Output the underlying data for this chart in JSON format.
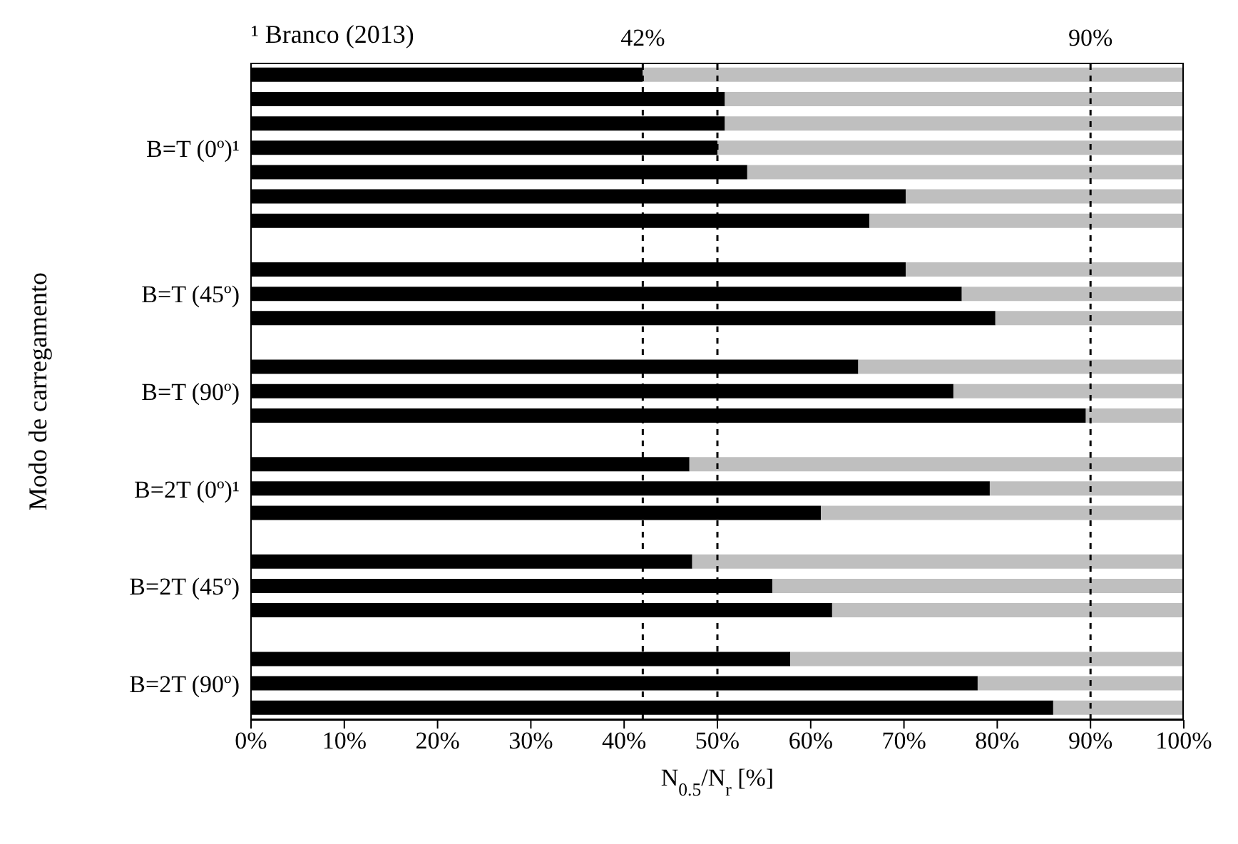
{
  "chart_data": {
    "type": "bar",
    "orientation": "horizontal",
    "stacked": true,
    "xlabel": "N$_{0.5}$/N$_{r}$ [%]",
    "ylabel": "Modo de carregamento",
    "annotations": [
      "¹ Branco (2013)"
    ],
    "categories": [
      null,
      null,
      null,
      "B=T (0º)¹",
      null,
      null,
      null,
      null,
      null,
      "B=T (45º)",
      null,
      null,
      null,
      "B=T (90º)",
      null,
      null,
      null,
      "B=2T (0º)¹",
      null,
      null,
      null,
      "B=2T (45º)",
      null,
      null,
      null,
      "B=2T (90º)",
      null
    ],
    "series": [
      {
        "color": "#000000",
        "values": [
          42.0,
          50.8,
          50.8,
          50.0,
          53.2,
          70.2,
          66.3,
          null,
          70.2,
          76.2,
          79.8,
          null,
          65.1,
          75.3,
          89.5,
          null,
          47.0,
          79.2,
          61.1,
          null,
          47.3,
          55.9,
          62.3,
          null,
          57.8,
          77.9,
          86.0
        ]
      },
      {
        "color": "#bfbfbf",
        "values": [
          58.0,
          49.2,
          49.2,
          50.0,
          46.8,
          29.8,
          33.7,
          null,
          29.8,
          23.8,
          20.2,
          null,
          34.9,
          24.7,
          10.5,
          null,
          53.0,
          20.8,
          38.9,
          null,
          52.7,
          44.1,
          37.7,
          null,
          42.2,
          22.1,
          14.0
        ]
      }
    ],
    "xlim": [
      0,
      100
    ],
    "xticks": [
      {
        "value": 0,
        "label": "0%"
      },
      {
        "value": 10,
        "label": "10%"
      },
      {
        "value": 20,
        "label": "20%"
      },
      {
        "value": 30,
        "label": "30%"
      },
      {
        "value": 40,
        "label": "40%"
      },
      {
        "value": 50,
        "label": "50%"
      },
      {
        "value": 60,
        "label": "60%"
      },
      {
        "value": 70,
        "label": "70%"
      },
      {
        "value": 80,
        "label": "80%"
      },
      {
        "value": 90,
        "label": "90%"
      },
      {
        "value": 100,
        "label": "100%"
      }
    ],
    "ref_lines": [
      {
        "axis": "x",
        "value": 42,
        "label": "42%",
        "color": "#000000",
        "line_style": "dashed"
      },
      {
        "axis": "x",
        "value": 50,
        "label": null,
        "color": "#000000",
        "line_style": "dashed"
      },
      {
        "axis": "x",
        "value": 90,
        "label": "90%",
        "color": "#000000",
        "line_style": "dashed"
      }
    ]
  }
}
